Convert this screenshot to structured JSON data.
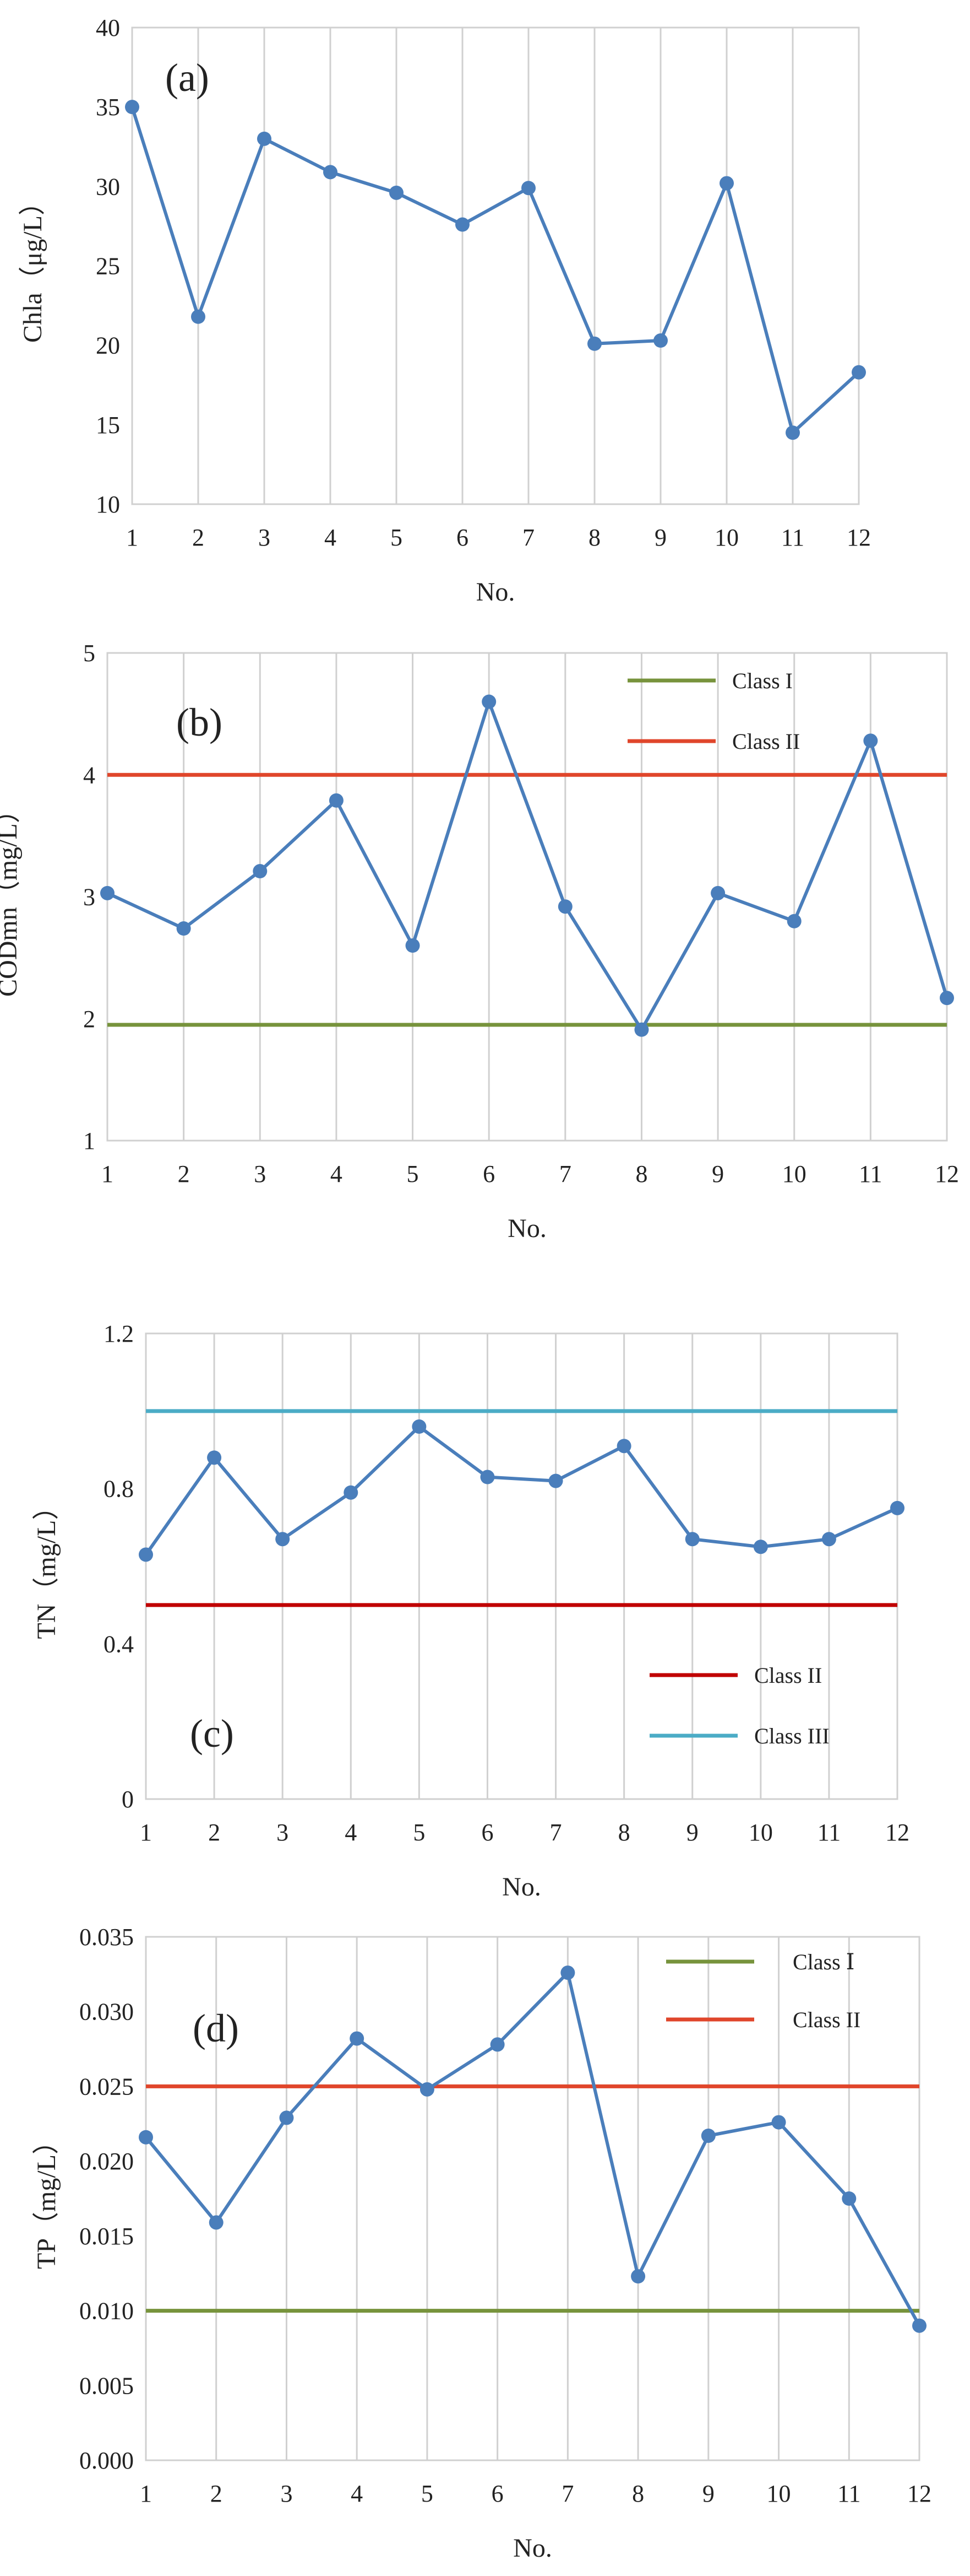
{
  "figure": {
    "colors": {
      "series": "#4a7ebb",
      "grid": "#d0d0d0",
      "class_I_green": "#77933c",
      "class_II_red": "#e0462b",
      "class_II_darkred": "#c00000",
      "class_III_cyan": "#4bacc6"
    }
  },
  "chart_data": [
    {
      "type": "line",
      "panel": "(a)",
      "xlabel": "No.",
      "ylabel": "Chla（μg/L）",
      "categories": [
        "1",
        "2",
        "3",
        "4",
        "5",
        "6",
        "7",
        "8",
        "9",
        "10",
        "11",
        "12"
      ],
      "ylim": [
        10,
        40
      ],
      "yticks": [
        "10",
        "15",
        "20",
        "25",
        "30",
        "35",
        "40"
      ],
      "series": [
        {
          "name": "Chla",
          "values": [
            35.0,
            21.8,
            33.0,
            30.9,
            29.6,
            27.6,
            29.9,
            20.1,
            20.3,
            30.2,
            14.5,
            18.3
          ]
        }
      ],
      "thresholds": []
    },
    {
      "type": "line",
      "panel": "(b)",
      "xlabel": "No.",
      "ylabel": "CODmn（mg/L）",
      "categories": [
        "1",
        "2",
        "3",
        "4",
        "5",
        "6",
        "7",
        "8",
        "9",
        "10",
        "11",
        "12"
      ],
      "ylim": [
        1,
        5
      ],
      "yticks": [
        "1",
        "2",
        "3",
        "4",
        "5"
      ],
      "series": [
        {
          "name": "CODmn",
          "values": [
            3.03,
            2.74,
            3.21,
            3.79,
            2.6,
            4.6,
            2.92,
            1.91,
            3.03,
            2.8,
            4.28,
            2.17
          ]
        }
      ],
      "thresholds": [
        {
          "name": "Class I",
          "value": 1.95,
          "color_key": "class_I_green"
        },
        {
          "name": "Class II",
          "value": 4.0,
          "color_key": "class_II_red"
        }
      ],
      "legend": "top-right"
    },
    {
      "type": "line",
      "panel": "(c)",
      "xlabel": "No.",
      "ylabel": "TN（mg/L）",
      "categories": [
        "1",
        "2",
        "3",
        "4",
        "5",
        "6",
        "7",
        "8",
        "9",
        "10",
        "11",
        "12"
      ],
      "ylim": [
        0,
        1.2
      ],
      "yticks": [
        "0",
        "0.4",
        "0.8",
        "1.2"
      ],
      "series": [
        {
          "name": "TN",
          "values": [
            0.63,
            0.88,
            0.67,
            0.79,
            0.96,
            0.83,
            0.82,
            0.91,
            0.67,
            0.65,
            0.67,
            0.75
          ]
        }
      ],
      "thresholds": [
        {
          "name": "Class II",
          "value": 0.5,
          "color_key": "class_II_darkred"
        },
        {
          "name": "Class III",
          "value": 1.0,
          "color_key": "class_III_cyan"
        }
      ],
      "legend": "bottom-right"
    },
    {
      "type": "line",
      "panel": "(d)",
      "xlabel": "No.",
      "ylabel": "TP（mg/L）",
      "categories": [
        "1",
        "2",
        "3",
        "4",
        "5",
        "6",
        "7",
        "8",
        "9",
        "10",
        "11",
        "12"
      ],
      "ylim": [
        0,
        0.035
      ],
      "yticks": [
        "0.000",
        "0.005",
        "0.010",
        "0.015",
        "0.020",
        "0.025",
        "0.030",
        "0.035"
      ],
      "series": [
        {
          "name": "TP",
          "values": [
            0.0216,
            0.0159,
            0.0229,
            0.0282,
            0.0248,
            0.0278,
            0.0326,
            0.0123,
            0.0217,
            0.0226,
            0.0175,
            0.009
          ]
        }
      ],
      "thresholds": [
        {
          "name": "Class Ⅰ",
          "value": 0.01,
          "color_key": "class_I_green"
        },
        {
          "name": "Class II",
          "value": 0.025,
          "color_key": "class_II_red"
        }
      ],
      "legend": "top-right"
    }
  ]
}
